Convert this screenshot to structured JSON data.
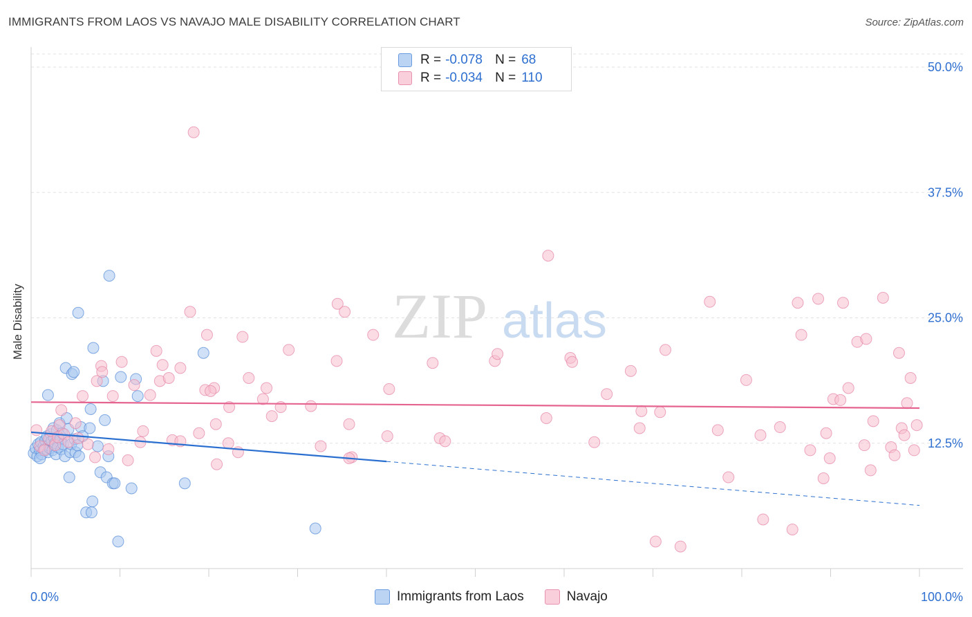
{
  "title": "IMMIGRANTS FROM LAOS VS NAVAJO MALE DISABILITY CORRELATION CHART",
  "source": "Source: ZipAtlas.com",
  "watermark": {
    "zip": "ZIP",
    "atlas": "atlas"
  },
  "legend": {
    "r_label": "R =",
    "n_label": "N =",
    "rows": [
      {
        "r": "-0.078",
        "n": "68"
      },
      {
        "r": "-0.034",
        "n": "110"
      }
    ]
  },
  "chart_data": {
    "type": "scatter",
    "title": "IMMIGRANTS FROM LAOS VS NAVAJO MALE DISABILITY CORRELATION CHART",
    "xlabel": "",
    "ylabel": "Male Disability",
    "xlim": [
      0,
      100
    ],
    "ylim": [
      0,
      52
    ],
    "x_tick_labels": [
      "0.0%",
      "100.0%"
    ],
    "y_ticks": [
      12.5,
      25.0,
      37.5,
      50.0
    ],
    "y_tick_labels": [
      "12.5%",
      "25.0%",
      "37.5%",
      "50.0%"
    ],
    "grid": true,
    "colors": {
      "laos_fill": "#a9c8f0",
      "laos_stroke": "#5b8fd8",
      "laos_line": "#2a6fd0",
      "navajo_fill": "#f7bfd0",
      "navajo_stroke": "#e58aa8",
      "navajo_line": "#e5648f",
      "tick_label": "#2e6fd0"
    },
    "series": [
      {
        "name": "Immigrants from Laos",
        "r": -0.078,
        "n": 68,
        "trend": {
          "x": [
            0,
            100
          ],
          "y": [
            13.6,
            6.3
          ],
          "solid_until_x": 40
        },
        "points": [
          [
            0.3,
            11.5
          ],
          [
            0.5,
            12.0
          ],
          [
            0.7,
            11.2
          ],
          [
            0.8,
            12.4
          ],
          [
            1.0,
            11.8
          ],
          [
            1.1,
            12.6
          ],
          [
            1.2,
            11.4
          ],
          [
            1.4,
            12.2
          ],
          [
            1.5,
            11.9
          ],
          [
            1.6,
            12.8
          ],
          [
            1.8,
            13.2
          ],
          [
            1.9,
            11.6
          ],
          [
            2.0,
            12.3
          ],
          [
            2.1,
            12.0
          ],
          [
            2.2,
            13.4
          ],
          [
            2.3,
            12.7
          ],
          [
            2.4,
            11.8
          ],
          [
            2.5,
            14.0
          ],
          [
            2.6,
            13.0
          ],
          [
            2.7,
            12.5
          ],
          [
            2.8,
            11.4
          ],
          [
            2.9,
            13.8
          ],
          [
            3.0,
            12.1
          ],
          [
            3.1,
            13.1
          ],
          [
            3.2,
            14.5
          ],
          [
            3.3,
            12.9
          ],
          [
            3.4,
            11.9
          ],
          [
            3.5,
            13.5
          ],
          [
            3.6,
            12.4
          ],
          [
            3.8,
            11.2
          ],
          [
            3.9,
            20.0
          ],
          [
            4.0,
            15.0
          ],
          [
            4.2,
            13.9
          ],
          [
            4.3,
            9.1
          ],
          [
            4.4,
            11.6
          ],
          [
            4.5,
            12.4
          ],
          [
            4.6,
            19.4
          ],
          [
            4.8,
            19.6
          ],
          [
            4.9,
            12.9
          ],
          [
            5.0,
            11.6
          ],
          [
            5.2,
            12.3
          ],
          [
            5.4,
            11.2
          ],
          [
            5.6,
            14.1
          ],
          [
            5.8,
            13.2
          ],
          [
            6.2,
            5.6
          ],
          [
            6.6,
            14.0
          ],
          [
            6.7,
            15.9
          ],
          [
            6.8,
            5.6
          ],
          [
            6.9,
            6.7
          ],
          [
            7.0,
            22.0
          ],
          [
            5.3,
            25.5
          ],
          [
            1.9,
            17.3
          ],
          [
            7.5,
            12.2
          ],
          [
            7.8,
            9.6
          ],
          [
            8.1,
            18.7
          ],
          [
            8.3,
            14.8
          ],
          [
            8.5,
            9.1
          ],
          [
            8.7,
            11.2
          ],
          [
            8.8,
            29.2
          ],
          [
            9.2,
            8.5
          ],
          [
            9.4,
            8.5
          ],
          [
            9.8,
            2.7
          ],
          [
            10.1,
            19.1
          ],
          [
            11.3,
            8.0
          ],
          [
            11.8,
            18.9
          ],
          [
            12.0,
            17.2
          ],
          [
            17.3,
            8.5
          ],
          [
            19.4,
            21.5
          ],
          [
            32.0,
            4.0
          ],
          [
            1.0,
            11.0
          ]
        ]
      },
      {
        "name": "Navajo",
        "r": -0.034,
        "n": 110,
        "trend": {
          "x": [
            0,
            100
          ],
          "y": [
            16.6,
            16.0
          ]
        },
        "points": [
          [
            0.6,
            13.8
          ],
          [
            1.0,
            12.2
          ],
          [
            1.5,
            11.8
          ],
          [
            2.0,
            12.9
          ],
          [
            2.3,
            13.7
          ],
          [
            2.7,
            12.3
          ],
          [
            3.0,
            13.1
          ],
          [
            3.2,
            14.3
          ],
          [
            3.4,
            15.8
          ],
          [
            3.7,
            13.4
          ],
          [
            4.2,
            12.6
          ],
          [
            5.0,
            14.5
          ],
          [
            5.3,
            13.0
          ],
          [
            5.8,
            17.2
          ],
          [
            6.4,
            12.4
          ],
          [
            7.2,
            11.1
          ],
          [
            7.4,
            18.7
          ],
          [
            7.9,
            20.2
          ],
          [
            8.0,
            19.6
          ],
          [
            8.7,
            11.9
          ],
          [
            9.2,
            17.2
          ],
          [
            10.2,
            20.6
          ],
          [
            10.9,
            10.8
          ],
          [
            11.6,
            18.3
          ],
          [
            12.3,
            12.6
          ],
          [
            12.6,
            13.7
          ],
          [
            13.4,
            17.3
          ],
          [
            14.1,
            21.7
          ],
          [
            14.8,
            20.3
          ],
          [
            14.5,
            18.7
          ],
          [
            15.5,
            19.0
          ],
          [
            15.9,
            12.8
          ],
          [
            16.8,
            20.0
          ],
          [
            17.9,
            25.6
          ],
          [
            16.8,
            12.7
          ],
          [
            18.3,
            43.5
          ],
          [
            18.9,
            13.5
          ],
          [
            19.6,
            17.8
          ],
          [
            19.8,
            23.3
          ],
          [
            20.6,
            18.0
          ],
          [
            20.2,
            17.7
          ],
          [
            20.8,
            14.4
          ],
          [
            20.9,
            10.4
          ],
          [
            22.2,
            12.5
          ],
          [
            22.3,
            16.1
          ],
          [
            23.3,
            11.6
          ],
          [
            23.8,
            23.1
          ],
          [
            24.5,
            19.0
          ],
          [
            26.1,
            16.9
          ],
          [
            26.5,
            18.0
          ],
          [
            27.1,
            15.2
          ],
          [
            28.1,
            16.1
          ],
          [
            29.0,
            21.8
          ],
          [
            31.5,
            16.2
          ],
          [
            32.6,
            12.2
          ],
          [
            34.4,
            20.7
          ],
          [
            34.5,
            26.4
          ],
          [
            35.3,
            25.6
          ],
          [
            35.8,
            14.4
          ],
          [
            36.1,
            11.1
          ],
          [
            35.8,
            11.0
          ],
          [
            38.5,
            23.3
          ],
          [
            40.1,
            13.2
          ],
          [
            40.3,
            17.9
          ],
          [
            45.2,
            20.5
          ],
          [
            46.0,
            13.0
          ],
          [
            46.6,
            12.7
          ],
          [
            52.2,
            20.7
          ],
          [
            52.5,
            21.4
          ],
          [
            58.0,
            15.0
          ],
          [
            58.2,
            31.2
          ],
          [
            60.7,
            21.0
          ],
          [
            60.9,
            20.6
          ],
          [
            63.4,
            12.6
          ],
          [
            64.8,
            17.4
          ],
          [
            67.5,
            19.7
          ],
          [
            68.5,
            14.0
          ],
          [
            68.7,
            15.7
          ],
          [
            70.8,
            15.6
          ],
          [
            71.4,
            21.8
          ],
          [
            70.3,
            2.7
          ],
          [
            73.1,
            2.2
          ],
          [
            76.4,
            26.6
          ],
          [
            77.3,
            13.8
          ],
          [
            78.5,
            9.1
          ],
          [
            80.5,
            18.8
          ],
          [
            82.1,
            13.3
          ],
          [
            82.4,
            4.9
          ],
          [
            84.3,
            14.1
          ],
          [
            85.7,
            3.9
          ],
          [
            86.3,
            26.5
          ],
          [
            86.7,
            23.3
          ],
          [
            87.7,
            11.8
          ],
          [
            88.6,
            26.9
          ],
          [
            89.2,
            9.0
          ],
          [
            89.5,
            13.5
          ],
          [
            89.9,
            11.0
          ],
          [
            90.3,
            16.9
          ],
          [
            91.1,
            16.8
          ],
          [
            91.4,
            26.5
          ],
          [
            92.0,
            18.0
          ],
          [
            93.0,
            22.6
          ],
          [
            93.8,
            12.3
          ],
          [
            94.0,
            22.9
          ],
          [
            94.5,
            9.8
          ],
          [
            94.8,
            14.7
          ],
          [
            95.9,
            27.0
          ],
          [
            96.8,
            12.1
          ],
          [
            97.2,
            11.3
          ],
          [
            97.7,
            21.5
          ],
          [
            98.0,
            14.0
          ],
          [
            98.3,
            13.3
          ],
          [
            98.6,
            16.5
          ],
          [
            99.0,
            19.0
          ],
          [
            99.4,
            11.8
          ],
          [
            99.7,
            14.3
          ]
        ]
      }
    ]
  },
  "bottom_legend": [
    "Immigrants from Laos",
    "Navajo"
  ]
}
